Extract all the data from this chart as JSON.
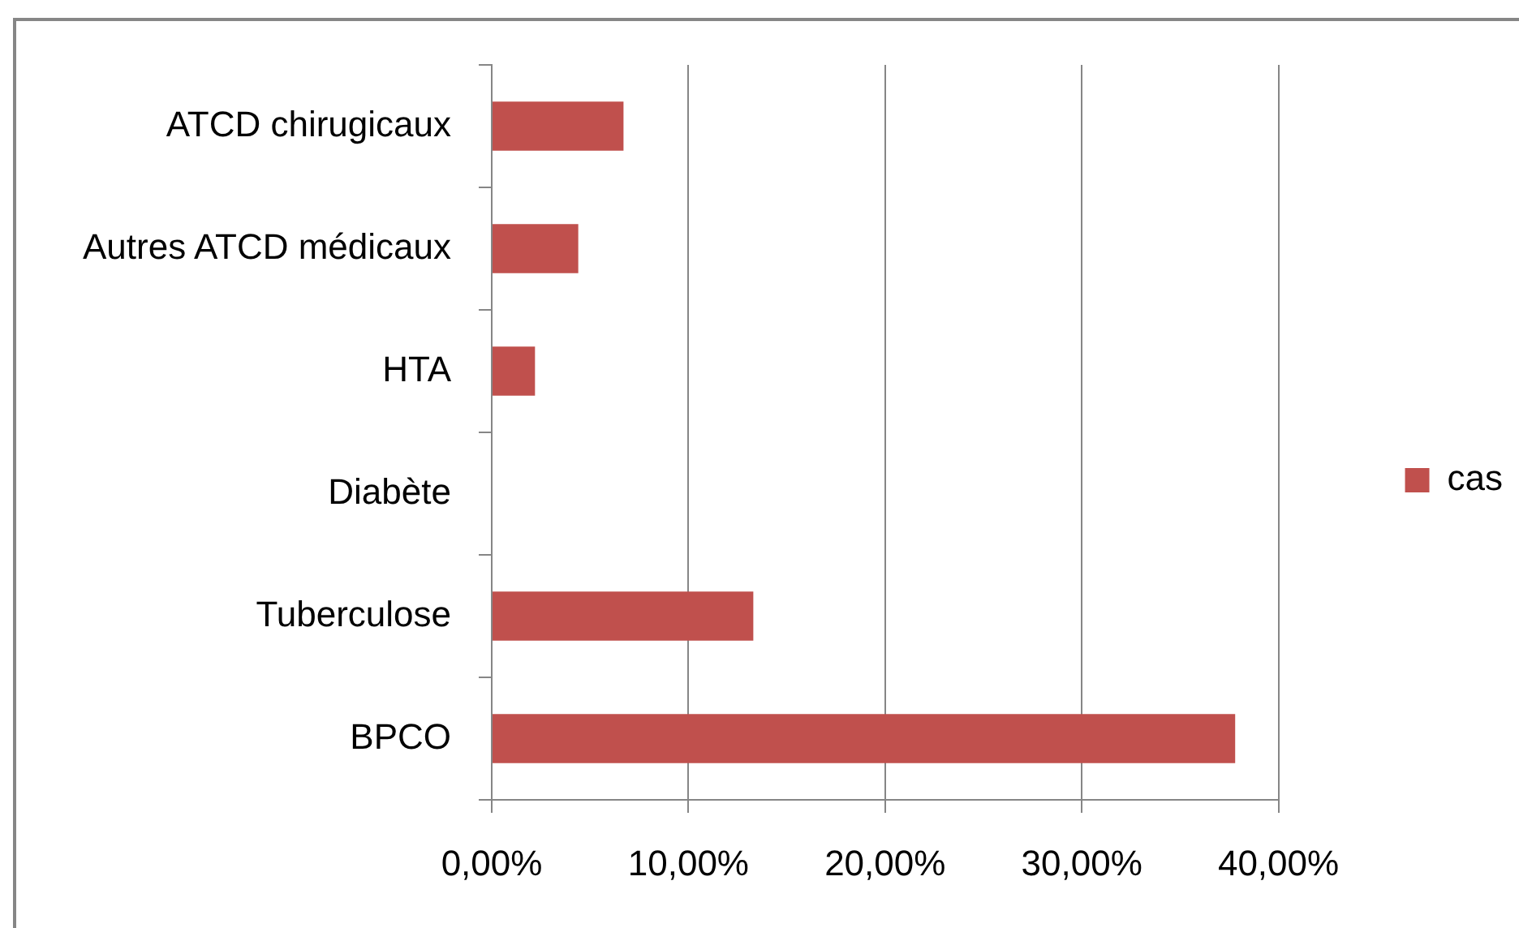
{
  "chart_data": {
    "type": "bar",
    "orientation": "horizontal",
    "categories": [
      "ATCD chirugicaux",
      "Autres ATCD médicaux",
      "HTA",
      "Diabète",
      "Tuberculose",
      "BPCO"
    ],
    "series": [
      {
        "name": "cas",
        "color": "#c0504d",
        "values": [
          6.7,
          4.4,
          2.2,
          0,
          13.3,
          37.8
        ]
      }
    ],
    "xlim": [
      0,
      40
    ],
    "xticks": [
      {
        "value": 0,
        "label": "0,00%"
      },
      {
        "value": 10,
        "label": "10,00%"
      },
      {
        "value": 20,
        "label": "20,00%"
      },
      {
        "value": 30,
        "label": "30,00%"
      },
      {
        "value": 40,
        "label": "40,00%"
      }
    ],
    "grid": "x",
    "legend": "right"
  }
}
